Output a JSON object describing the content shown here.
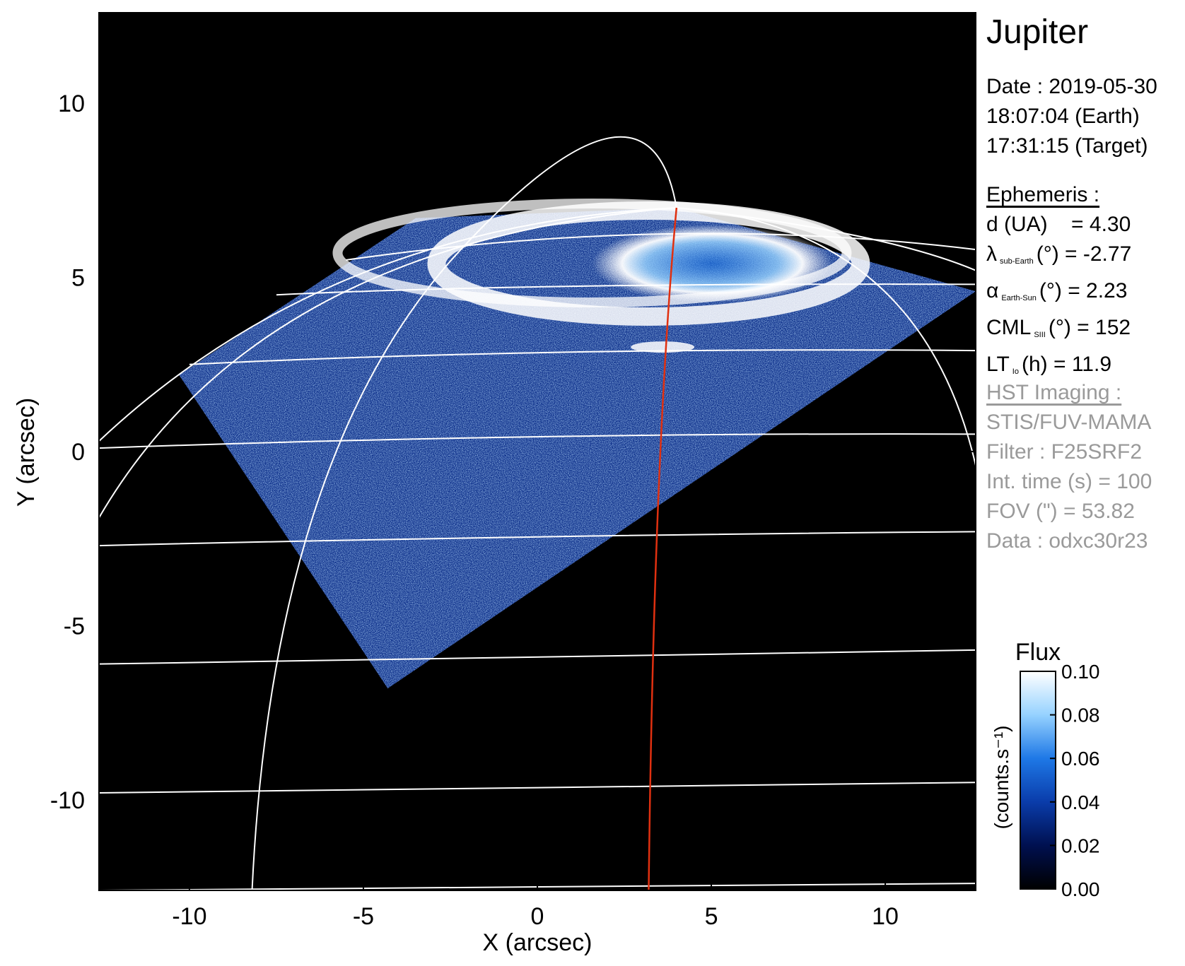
{
  "colors": {
    "background": "#000000",
    "grid": "#ffffff",
    "meridian": "#e03010",
    "hst_text": "#9a9a9a",
    "colormap": [
      "#000000",
      "#001050",
      "#0a3caa",
      "#1e78e6",
      "#96d2ff",
      "#ffffff"
    ]
  },
  "info": {
    "title": "Jupiter",
    "date": "Date : 2019-05-30",
    "time_earth": "18:07:04 (Earth)",
    "time_target": "17:31:15 (Target)",
    "ephem_heading": "Ephemeris :",
    "d_label": "d (UA)",
    "d_value": "= 4.30",
    "lambda_symbol": "λ",
    "lambda_sub": "sub-Earth",
    "lambda_value": "(°) = -2.77",
    "alpha_symbol": "α",
    "alpha_sub": "Earth-Sun",
    "alpha_value": "(°) = 2.23",
    "cml_symbol": "CML",
    "cml_sub": "SIII",
    "cml_value": "(°) = 152",
    "lt_symbol": "LT",
    "lt_sub": "Io",
    "lt_value": "(h) = 11.9",
    "hst_heading": "HST Imaging :",
    "instrument": "STIS/FUV-MAMA",
    "filter": "Filter : F25SRF2",
    "int_time": "Int. time (s) = 100",
    "fov": "FOV (\") = 53.82",
    "data_id": "Data : odxc30r23"
  },
  "chart_data": {
    "type": "heatmap",
    "xlabel": "X (arcsec)",
    "ylabel": "Y (arcsec)",
    "xlim": [
      -12.6,
      12.6
    ],
    "ylim": [
      -12.6,
      12.6
    ],
    "xticks": [
      -10,
      -5,
      0,
      5,
      10
    ],
    "yticks": [
      -10,
      -5,
      0,
      5,
      10
    ],
    "tick_labels_x": [
      "-10",
      "-5",
      "0",
      "5",
      "10"
    ],
    "tick_labels_y": [
      "-10",
      "-5",
      "0",
      "5",
      "10"
    ],
    "image_footprint_corners": [
      [
        -10.3,
        2.2
      ],
      [
        -4.3,
        -6.8
      ],
      [
        12.6,
        4.6
      ],
      [
        4.0,
        7.0
      ],
      [
        -3.5,
        6.7
      ]
    ],
    "auroral_oval_center": [
      3.2,
      5.6
    ],
    "meridian_x_range": [
      3.2,
      4.0
    ],
    "colorbar": {
      "title": "Flux",
      "label": "(counts.s⁻¹)",
      "min": 0.0,
      "max": 0.1,
      "ticks": [
        0.0,
        0.02,
        0.04,
        0.06,
        0.08,
        0.1
      ],
      "tick_labels": [
        "0.00",
        "0.02",
        "0.04",
        "0.06",
        "0.08",
        "0.10"
      ]
    }
  }
}
